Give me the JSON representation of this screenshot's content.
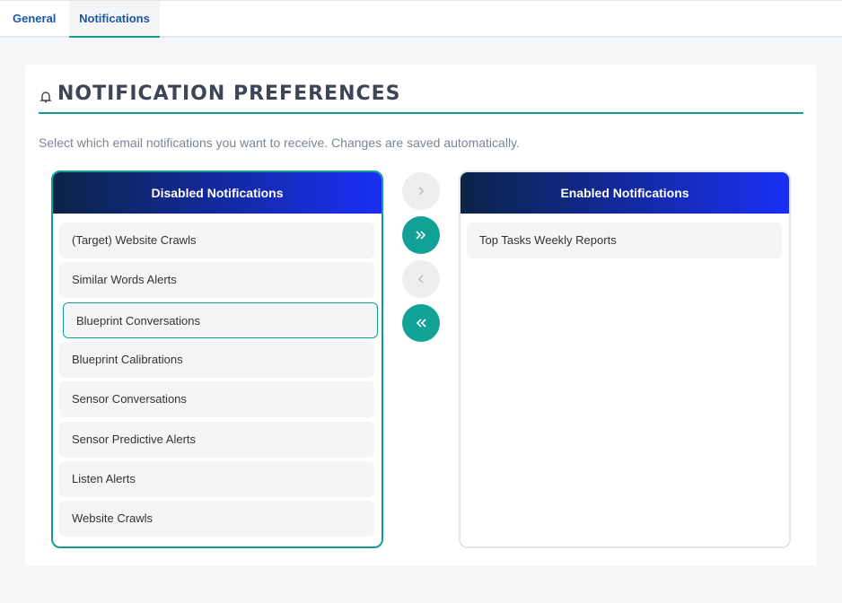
{
  "tabs": [
    "General",
    "Notifications"
  ],
  "title": "Notification Preferences",
  "description": "Select which email notifications you want to receive. Changes are saved automatically.",
  "disabled": {
    "title": "Disabled Notifications",
    "items": [
      "(Target) Website Crawls",
      "Similar Words Alerts",
      "Blueprint Conversations",
      "Blueprint Calibrations",
      "Sensor Conversations",
      "Sensor Predictive Alerts",
      "Listen Alerts",
      "Website Crawls"
    ]
  },
  "enabled": {
    "title": "Enabled Notifications",
    "items": [
      "Top Tasks Weekly Reports"
    ]
  }
}
